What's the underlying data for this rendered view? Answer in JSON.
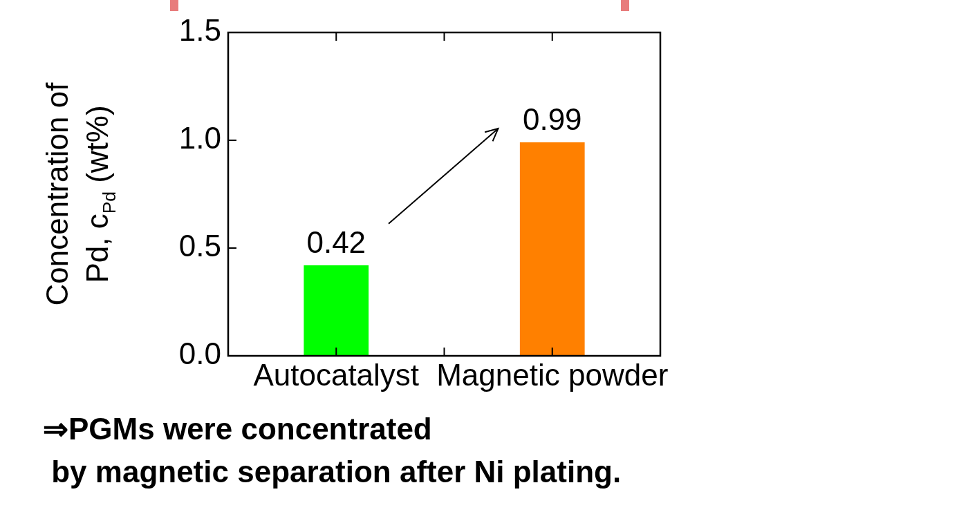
{
  "chart_data": {
    "type": "bar",
    "categories": [
      "Autocatalyst",
      "Magnetic powder"
    ],
    "values": [
      0.42,
      0.99
    ],
    "colors": [
      "#00ff00",
      "#ff8000"
    ],
    "ylabel": "Concentration of\nPd, c$_{Pd}$ (wt%)",
    "ylim": [
      0,
      1.5
    ],
    "yticks": [
      {
        "value": 0,
        "label": "0.0"
      },
      0.5,
      {
        "value": 1,
        "label": "1.0"
      },
      1.5
    ],
    "data_labels": true,
    "grid": false,
    "legend": false,
    "annotations": [
      "⇒PGMs were concentrated\n by magnetic separation after Ni plating."
    ]
  }
}
